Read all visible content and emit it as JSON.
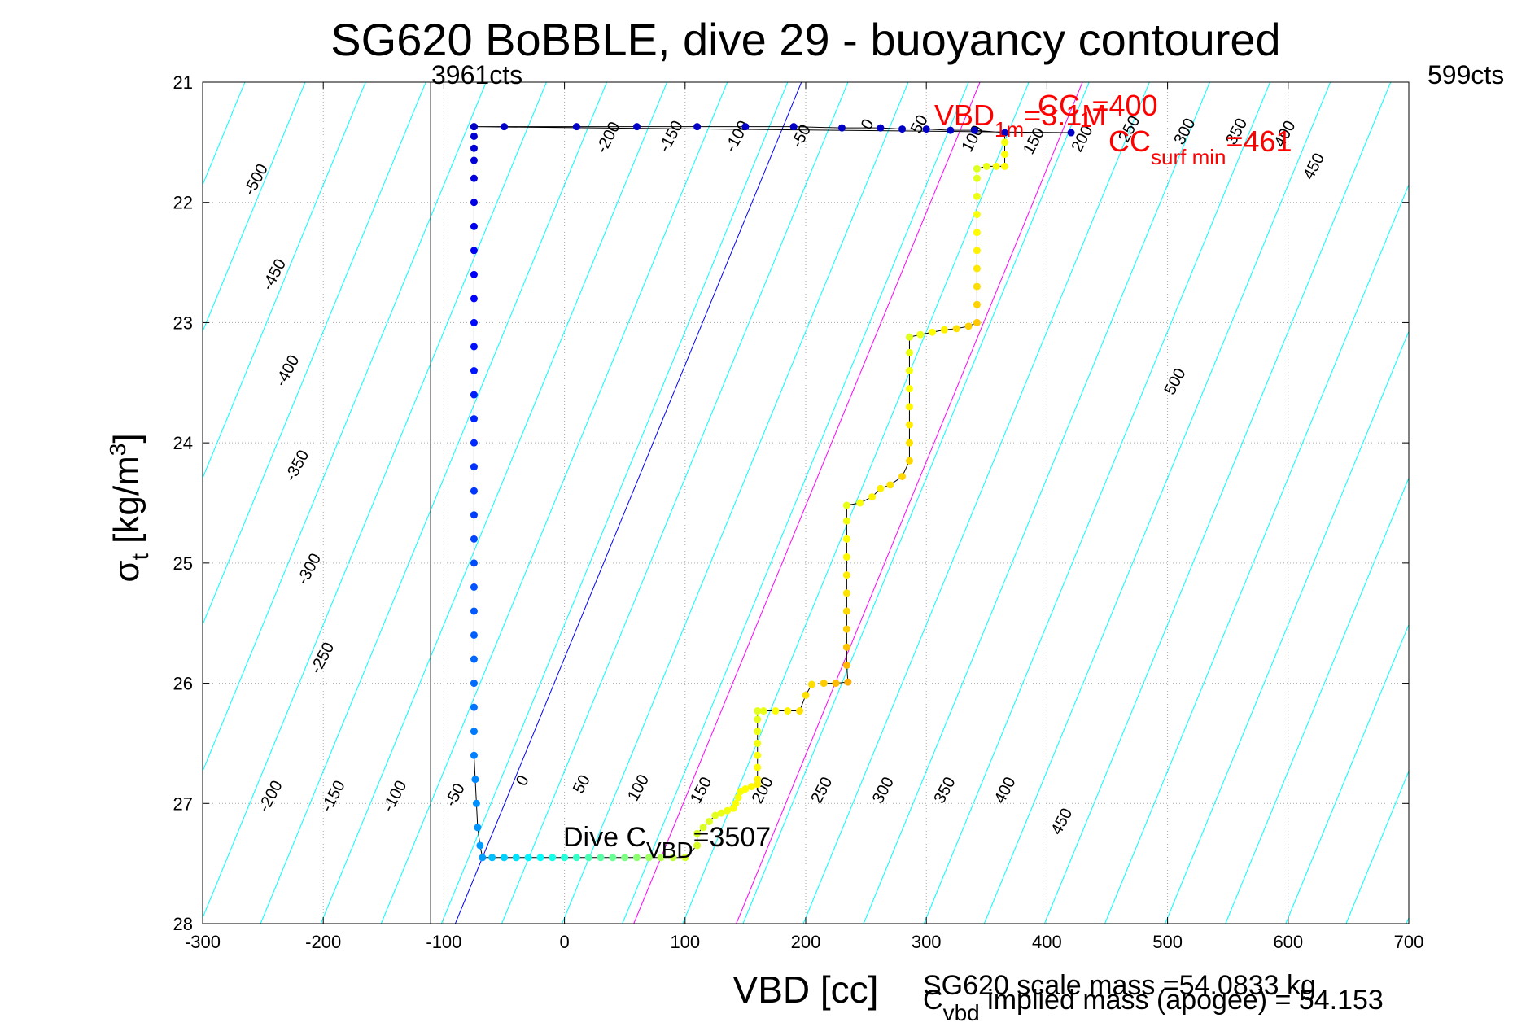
{
  "chart_data": {
    "type": "scatter",
    "title": "SG620 BoBBLE, dive 29 - buoyancy contoured",
    "xlabel": "VBD [cc]",
    "ylabel": {
      "sigma": "σ",
      "sub": "t",
      "units": "[kg/m",
      "sup": "3",
      "close": "]"
    },
    "xlim": [
      -300,
      700
    ],
    "ylim": [
      21,
      28
    ],
    "y_reversed": true,
    "grid": true,
    "xticks": [
      -300,
      -200,
      -100,
      0,
      100,
      200,
      300,
      400,
      500,
      600,
      700
    ],
    "yticks": [
      21,
      22,
      23,
      24,
      25,
      26,
      27,
      28
    ],
    "isoline_slope_cc_per_sigma": 41,
    "isolines_cyan": [
      -650,
      -600,
      -550,
      -500,
      -450,
      -400,
      -350,
      -300,
      -250,
      -200,
      -150,
      -100,
      -50,
      0,
      50,
      100,
      150,
      200,
      250,
      300,
      350,
      400,
      450,
      500,
      550,
      600,
      650,
      700,
      750,
      800,
      850
    ],
    "isolabels_top": [
      {
        "value": -500,
        "x": -252,
        "y": 21.83
      },
      {
        "value": -200,
        "x": 40,
        "y": 21.48
      },
      {
        "value": -150,
        "x": 92,
        "y": 21.47
      },
      {
        "value": -100,
        "x": 147,
        "y": 21.47
      },
      {
        "value": -50,
        "x": 200,
        "y": 21.47
      },
      {
        "value": 0,
        "x": 255,
        "y": 21.37
      },
      {
        "value": 50,
        "x": 298,
        "y": 21.37
      },
      {
        "value": 100,
        "x": 342,
        "y": 21.49
      },
      {
        "value": 150,
        "x": 393,
        "y": 21.51
      },
      {
        "value": 200,
        "x": 433,
        "y": 21.49
      },
      {
        "value": 250,
        "x": 472,
        "y": 21.41
      },
      {
        "value": 300,
        "x": 518,
        "y": 21.43
      },
      {
        "value": 350,
        "x": 561,
        "y": 21.43
      },
      {
        "value": 400,
        "x": 601,
        "y": 21.45
      },
      {
        "value": 450,
        "x": 625,
        "y": 21.72
      }
    ],
    "isolabels_left": [
      {
        "value": -450,
        "x": -237,
        "y": 22.62
      },
      {
        "value": -400,
        "x": -226,
        "y": 23.42
      },
      {
        "value": -350,
        "x": -218,
        "y": 24.21
      },
      {
        "value": -300,
        "x": -208,
        "y": 25.07
      },
      {
        "value": -250,
        "x": -197,
        "y": 25.81
      }
    ],
    "isolabels_bottom": [
      {
        "value": -200,
        "x": -240,
        "y": 26.96
      },
      {
        "value": -150,
        "x": -188,
        "y": 26.96
      },
      {
        "value": -100,
        "x": -137,
        "y": 26.96
      },
      {
        "value": -50,
        "x": -87,
        "y": 26.95
      },
      {
        "value": 0,
        "x": -31,
        "y": 26.83
      },
      {
        "value": 50,
        "x": 18,
        "y": 26.86
      },
      {
        "value": 100,
        "x": 65,
        "y": 26.89
      },
      {
        "value": 150,
        "x": 117,
        "y": 26.91
      },
      {
        "value": 200,
        "x": 168,
        "y": 26.91
      },
      {
        "value": 250,
        "x": 217,
        "y": 26.91
      },
      {
        "value": 300,
        "x": 268,
        "y": 26.91
      },
      {
        "value": 350,
        "x": 319,
        "y": 26.91
      },
      {
        "value": 400,
        "x": 369,
        "y": 26.91
      },
      {
        "value": 450,
        "x": 416,
        "y": 27.17
      },
      {
        "value": 500,
        "x": 510,
        "y": 23.51
      }
    ],
    "special_lines": [
      {
        "name": "zero-buoyancy",
        "color": "#0000ff",
        "x0": -68,
        "y0": 27.45
      },
      {
        "name": "cc-line-1",
        "color": "#ff00ff",
        "x0": 80,
        "y0": 27.45
      },
      {
        "name": "cc-line-2",
        "color": "#ff00ff",
        "x0": 165,
        "y0": 27.45
      }
    ],
    "vertical_line_x": -111,
    "cts_left": "3961cts",
    "cts_right": "599cts",
    "dive_points": [
      [
        -75,
        21.37
      ],
      [
        -75,
        21.45
      ],
      [
        -75,
        21.55
      ],
      [
        -75,
        21.65
      ],
      [
        -75,
        21.8
      ],
      [
        -75,
        22
      ],
      [
        -75,
        22.2
      ],
      [
        -75,
        22.4
      ],
      [
        -75,
        22.6
      ],
      [
        -75,
        22.8
      ],
      [
        -75,
        23
      ],
      [
        -75,
        23.2
      ],
      [
        -75,
        23.4
      ],
      [
        -75,
        23.6
      ],
      [
        -75,
        23.8
      ],
      [
        -75,
        24
      ],
      [
        -75,
        24.2
      ],
      [
        -75,
        24.4
      ],
      [
        -75,
        24.6
      ],
      [
        -75,
        24.8
      ],
      [
        -75,
        25
      ],
      [
        -75,
        25.2
      ],
      [
        -75,
        25.4
      ],
      [
        -75,
        25.6
      ],
      [
        -75,
        25.8
      ],
      [
        -75,
        26
      ],
      [
        -75,
        26.2
      ],
      [
        -75,
        26.4
      ],
      [
        -75,
        26.6
      ],
      [
        -74,
        26.8
      ],
      [
        -73,
        27
      ],
      [
        -72,
        27.2
      ],
      [
        -70,
        27.35
      ],
      [
        -68,
        27.45
      ],
      [
        -60,
        27.45
      ],
      [
        -50,
        27.45
      ],
      [
        -40,
        27.45
      ],
      [
        -30,
        27.45
      ],
      [
        -20,
        27.45
      ],
      [
        -10,
        27.45
      ],
      [
        0,
        27.45
      ],
      [
        10,
        27.45
      ],
      [
        20,
        27.45
      ],
      [
        30,
        27.45
      ],
      [
        40,
        27.45
      ],
      [
        50,
        27.45
      ],
      [
        60,
        27.45
      ],
      [
        70,
        27.45
      ],
      [
        80,
        27.45
      ],
      [
        90,
        27.45
      ],
      [
        100,
        27.45
      ],
      [
        110,
        27.35
      ],
      [
        110,
        27.25
      ],
      [
        115,
        27.2
      ],
      [
        120,
        27.15
      ],
      [
        125,
        27.1
      ],
      [
        130,
        27.08
      ],
      [
        135,
        27.06
      ],
      [
        140,
        27.04
      ],
      [
        142,
        27.0
      ],
      [
        144,
        26.95
      ],
      [
        146,
        26.9
      ],
      [
        150,
        26.88
      ],
      [
        155,
        26.86
      ],
      [
        160,
        26.84
      ],
      [
        160,
        26.8
      ],
      [
        160,
        26.7
      ],
      [
        160,
        26.6
      ],
      [
        160,
        26.5
      ],
      [
        160,
        26.4
      ],
      [
        160,
        26.3
      ],
      [
        160,
        26.23
      ],
      [
        165,
        26.23
      ],
      [
        175,
        26.23
      ],
      [
        185,
        26.23
      ],
      [
        195,
        26.23
      ],
      [
        200,
        26.1
      ],
      [
        205,
        26.01
      ],
      [
        215,
        26.0
      ],
      [
        225,
        26.0
      ],
      [
        235,
        25.99
      ],
      [
        234,
        25.85
      ],
      [
        234,
        25.7
      ],
      [
        234,
        25.55
      ],
      [
        234,
        25.4
      ],
      [
        234,
        25.25
      ],
      [
        234,
        25.1
      ],
      [
        234,
        24.95
      ],
      [
        234,
        24.8
      ],
      [
        234,
        24.65
      ],
      [
        234,
        24.52
      ],
      [
        245,
        24.5
      ],
      [
        255,
        24.45
      ],
      [
        262,
        24.38
      ],
      [
        270,
        24.35
      ],
      [
        280,
        24.28
      ],
      [
        286,
        24.15
      ],
      [
        286,
        24.0
      ],
      [
        286,
        23.85
      ],
      [
        286,
        23.7
      ],
      [
        286,
        23.55
      ],
      [
        286,
        23.4
      ],
      [
        286,
        23.25
      ],
      [
        286,
        23.12
      ],
      [
        295,
        23.1
      ],
      [
        305,
        23.08
      ],
      [
        315,
        23.06
      ],
      [
        325,
        23.05
      ],
      [
        335,
        23.03
      ],
      [
        342,
        23.0
      ],
      [
        342,
        22.85
      ],
      [
        342,
        22.7
      ],
      [
        342,
        22.55
      ],
      [
        342,
        22.4
      ],
      [
        342,
        22.25
      ],
      [
        342,
        22.1
      ],
      [
        342,
        21.95
      ],
      [
        342,
        21.8
      ],
      [
        342,
        21.72
      ],
      [
        350,
        21.7
      ],
      [
        358,
        21.7
      ],
      [
        365,
        21.7
      ],
      [
        365,
        21.6
      ],
      [
        365,
        21.5
      ],
      [
        365,
        21.42
      ],
      [
        340,
        21.4
      ],
      [
        320,
        21.4
      ],
      [
        300,
        21.39
      ],
      [
        280,
        21.39
      ],
      [
        262,
        21.38
      ],
      [
        230,
        21.38
      ],
      [
        190,
        21.37
      ],
      [
        150,
        21.37
      ],
      [
        110,
        21.37
      ],
      [
        60,
        21.37
      ],
      [
        10,
        21.37
      ],
      [
        -50,
        21.37
      ],
      [
        -75,
        21.37
      ],
      [
        420,
        21.42
      ]
    ],
    "annotations": {
      "vbd": {
        "main": "VBD",
        "sub": "1m",
        "value": "=3.1M"
      },
      "cc": {
        "main": "CC",
        "sub": "1",
        "value": "=400"
      },
      "cc_surf": {
        "main": "CC",
        "sub": "surf min",
        "value": "=461"
      },
      "dive_c": {
        "main": "Dive C",
        "sub": "VBD",
        "value": "=3507"
      },
      "scale_mass": "SG620 scale mass =54.0833 kg",
      "implied": {
        "main": "C",
        "sub": "vbd",
        "value": " implied mass (apogee) = 54.153"
      }
    }
  }
}
